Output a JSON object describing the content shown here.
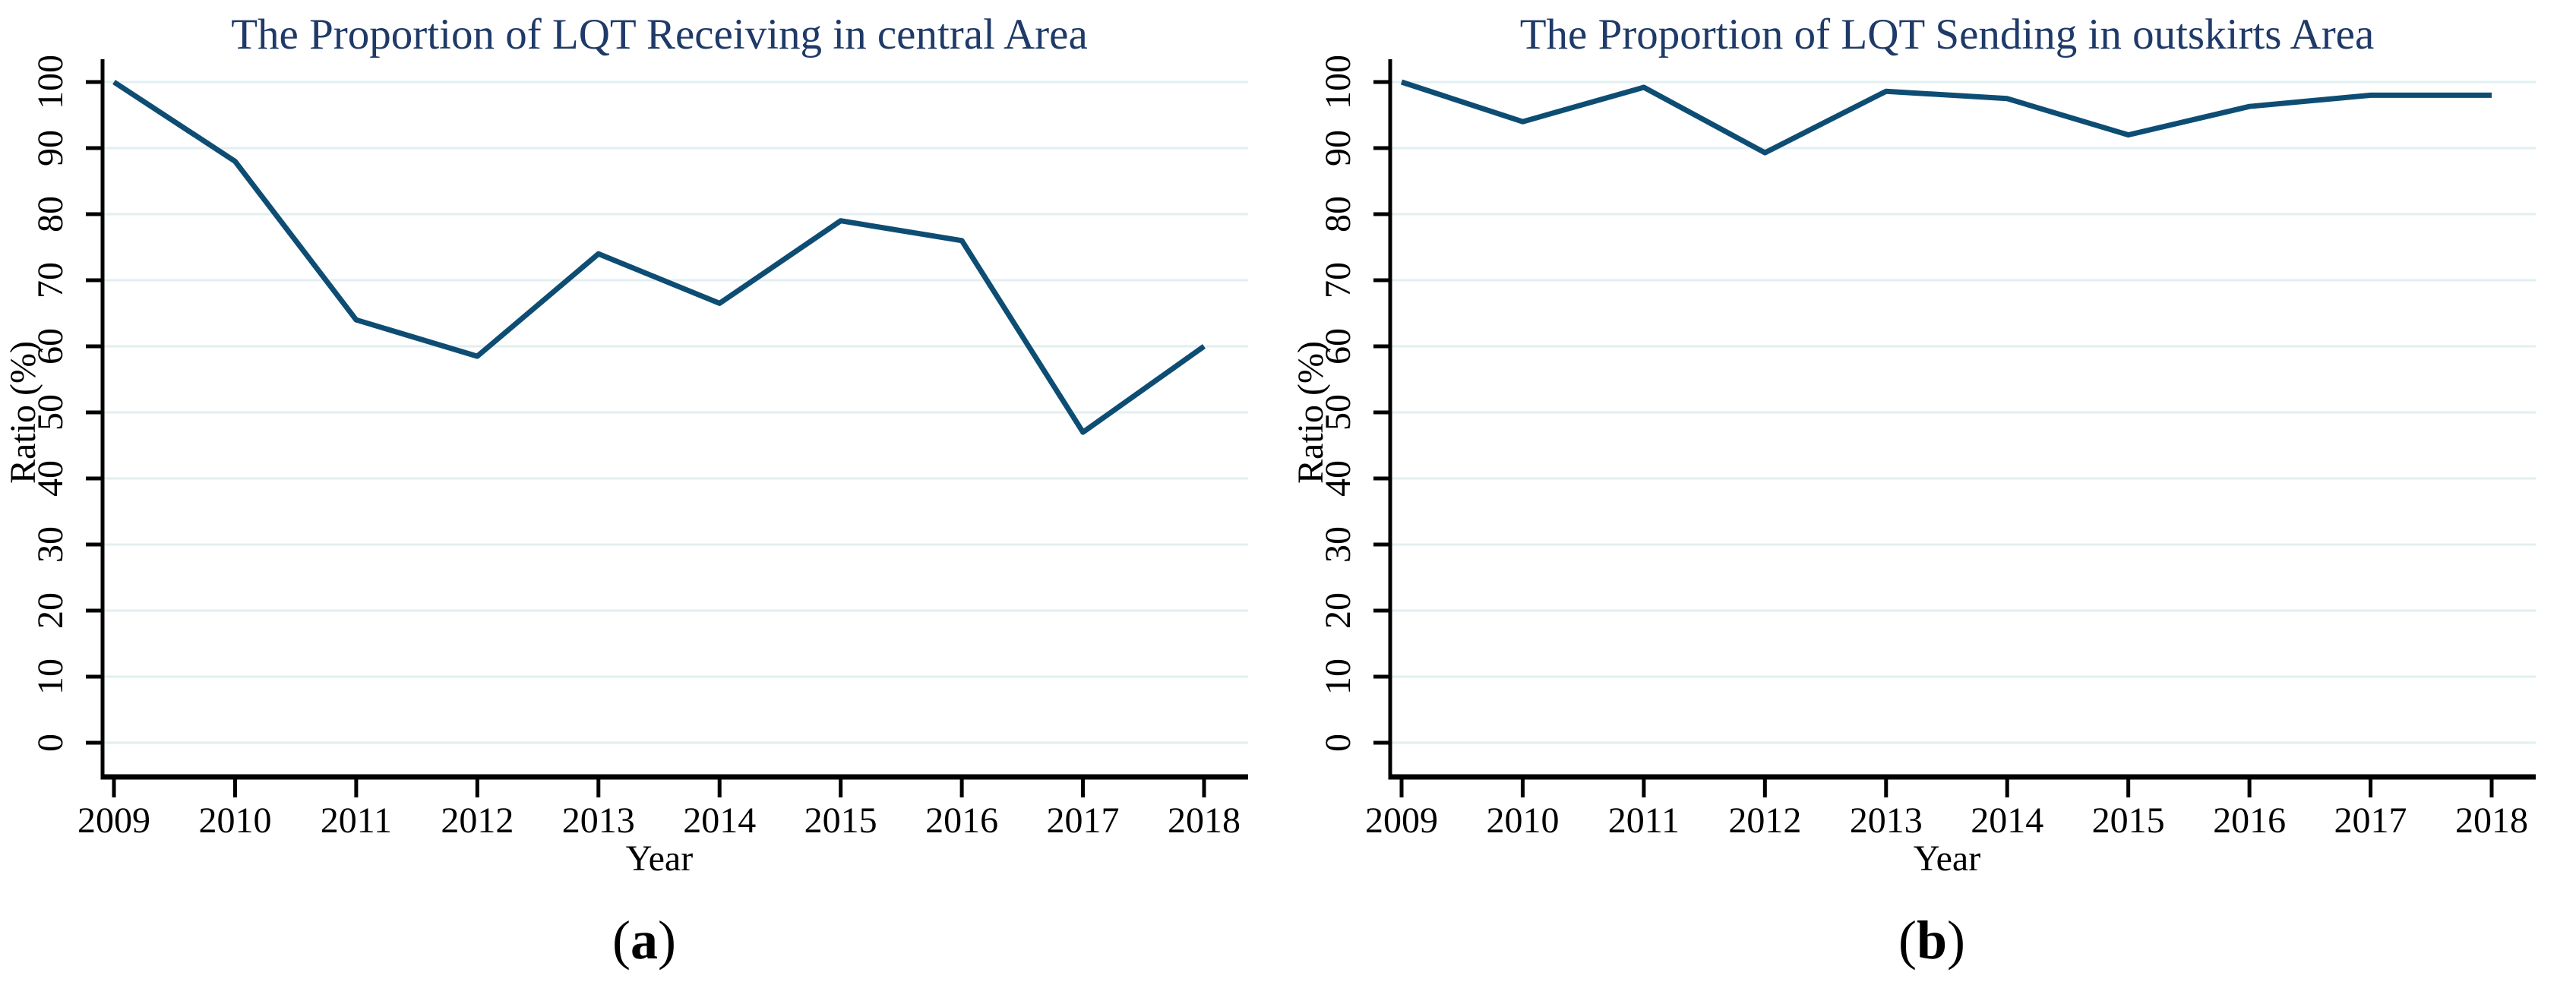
{
  "chart_data": [
    {
      "type": "line",
      "title": "The Proportion of LQT Receiving in central Area",
      "xlabel": "Year",
      "ylabel": "Ratio (%)",
      "caption": {
        "open": "(",
        "letter": "a",
        "close": ")"
      },
      "x": [
        2009,
        2010,
        2011,
        2012,
        2013,
        2014,
        2015,
        2016,
        2017,
        2018
      ],
      "values": [
        100,
        88,
        64,
        58.5,
        74,
        66.5,
        79,
        76,
        47,
        60
      ],
      "ylim": [
        0,
        100
      ],
      "yticks": [
        0,
        10,
        20,
        30,
        40,
        50,
        60,
        70,
        80,
        90,
        100
      ],
      "grid": "horizontal",
      "legend": "none",
      "line_color": "#0e4d73",
      "grid_color": "#e2eff1",
      "title_color": "#1f3a68",
      "axis_color": "#000000"
    },
    {
      "type": "line",
      "title": "The Proportion of LQT Sending in outskirts Area",
      "xlabel": "Year",
      "ylabel": "Ratio (%)",
      "caption": {
        "open": "(",
        "letter": "b",
        "close": ")"
      },
      "x": [
        2009,
        2010,
        2011,
        2012,
        2013,
        2014,
        2015,
        2016,
        2017,
        2018
      ],
      "values": [
        100,
        94,
        99.2,
        89.3,
        98.6,
        97.5,
        92,
        96.3,
        98,
        98
      ],
      "ylim": [
        0,
        100
      ],
      "yticks": [
        0,
        10,
        20,
        30,
        40,
        50,
        60,
        70,
        80,
        90,
        100
      ],
      "grid": "horizontal",
      "legend": "none",
      "line_color": "#0e4d73",
      "grid_color": "#e2eff1",
      "title_color": "#1f3a68",
      "axis_color": "#000000"
    }
  ]
}
